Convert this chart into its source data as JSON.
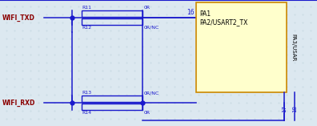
{
  "bg_color": "#dce8f0",
  "grid_color": "#b8cdd8",
  "wire_color": "#1a1acc",
  "label_color": "#8b0000",
  "text_color": "#1a1acc",
  "ic_fill": "#ffffcc",
  "ic_border": "#cc8800",
  "wifi_txd_label": "WIFI_TXD",
  "wifi_rxd_label": "WIFI_RXD",
  "r11_label": "R11",
  "r12_label": "R12",
  "r13_label": "R13",
  "r14_label": "R14",
  "r11_val": "0R",
  "r12_val": "0R/NC",
  "r13_val": "0R/NC",
  "r14_val": "0R",
  "pin16_label": "16",
  "pin17_label": "17",
  "pin18_label": "18",
  "pa1_label": "PA1",
  "pa2_label": "PA2/USART2_TX",
  "pa3_label": "PA3/USAR"
}
